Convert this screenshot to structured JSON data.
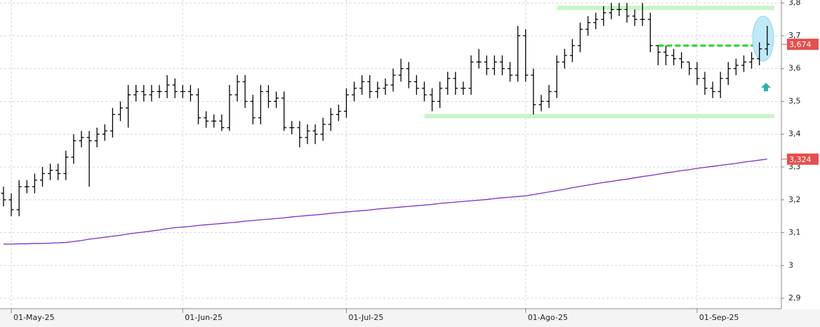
{
  "chart_data": {
    "type": "ohlc",
    "categories": [
      null,
      "01-May-25",
      null,
      null,
      null,
      null,
      null,
      null,
      null,
      null,
      null,
      null,
      null,
      null,
      null,
      null,
      null,
      null,
      null,
      null,
      null,
      null,
      null,
      "01-Jun-25",
      null,
      null,
      null,
      null,
      null,
      null,
      null,
      null,
      null,
      null,
      null,
      null,
      null,
      null,
      null,
      null,
      null,
      null,
      null,
      null,
      "01-Jul-25",
      null,
      null,
      null,
      null,
      null,
      null,
      null,
      null,
      null,
      null,
      null,
      null,
      null,
      null,
      null,
      null,
      null,
      null,
      null,
      null,
      null,
      null,
      "01-Ago-25",
      null,
      null,
      null,
      null,
      null,
      null,
      null,
      null,
      null,
      null,
      null,
      null,
      null,
      null,
      null,
      null,
      null,
      null,
      null,
      null,
      null,
      "01-Sep-25",
      null,
      null,
      null,
      null,
      null,
      null,
      null,
      null,
      null
    ],
    "open": [
      3.22,
      3.2,
      3.17,
      3.24,
      3.24,
      3.26,
      3.28,
      3.29,
      3.28,
      3.33,
      3.38,
      3.39,
      3.38,
      3.4,
      3.41,
      3.46,
      3.48,
      3.52,
      3.53,
      3.52,
      3.53,
      3.53,
      3.55,
      3.53,
      3.53,
      3.52,
      3.45,
      3.44,
      3.44,
      3.42,
      3.52,
      3.56,
      3.5,
      3.45,
      3.53,
      3.5,
      3.51,
      3.42,
      3.42,
      3.39,
      3.41,
      3.4,
      3.43,
      3.46,
      3.47,
      3.52,
      3.54,
      3.56,
      3.53,
      3.54,
      3.55,
      3.58,
      3.6,
      3.56,
      3.54,
      3.52,
      3.5,
      3.54,
      3.57,
      3.54,
      3.54,
      3.62,
      3.62,
      3.6,
      3.62,
      3.6,
      3.58,
      3.7,
      3.58,
      3.49,
      3.5,
      3.53,
      3.62,
      3.64,
      3.67,
      3.72,
      3.74,
      3.75,
      3.77,
      3.78,
      3.78,
      3.76,
      3.75,
      3.75,
      3.67,
      3.65,
      3.64,
      3.63,
      3.62,
      3.6,
      3.57,
      3.54,
      3.53,
      3.57,
      3.6,
      3.61,
      3.62,
      3.63,
      3.66
    ],
    "high": [
      3.24,
      3.22,
      3.26,
      3.26,
      3.28,
      3.3,
      3.31,
      3.31,
      3.35,
      3.4,
      3.41,
      3.41,
      3.42,
      3.43,
      3.48,
      3.5,
      3.55,
      3.55,
      3.55,
      3.55,
      3.55,
      3.58,
      3.57,
      3.55,
      3.55,
      3.54,
      3.47,
      3.46,
      3.46,
      3.55,
      3.58,
      3.58,
      3.52,
      3.55,
      3.55,
      3.53,
      3.53,
      3.44,
      3.44,
      3.43,
      3.43,
      3.45,
      3.48,
      3.49,
      3.54,
      3.56,
      3.58,
      3.58,
      3.56,
      3.57,
      3.6,
      3.63,
      3.62,
      3.58,
      3.56,
      3.54,
      3.56,
      3.59,
      3.59,
      3.56,
      3.64,
      3.66,
      3.64,
      3.64,
      3.64,
      3.62,
      3.73,
      3.72,
      3.6,
      3.52,
      3.55,
      3.64,
      3.66,
      3.69,
      3.74,
      3.76,
      3.77,
      3.79,
      3.8,
      3.8,
      3.8,
      3.78,
      3.8,
      3.77,
      3.67,
      3.67,
      3.66,
      3.65,
      3.62,
      3.62,
      3.59,
      3.56,
      3.59,
      3.62,
      3.63,
      3.64,
      3.65,
      3.68,
      3.73
    ],
    "low": [
      3.18,
      3.15,
      3.15,
      3.22,
      3.22,
      3.24,
      3.26,
      3.26,
      3.26,
      3.31,
      3.36,
      3.24,
      3.36,
      3.38,
      3.39,
      3.44,
      3.42,
      3.5,
      3.5,
      3.5,
      3.51,
      3.51,
      3.51,
      3.51,
      3.5,
      3.43,
      3.42,
      3.42,
      3.41,
      3.41,
      3.5,
      3.48,
      3.43,
      3.43,
      3.48,
      3.48,
      3.41,
      3.4,
      3.36,
      3.37,
      3.37,
      3.38,
      3.41,
      3.44,
      3.45,
      3.5,
      3.52,
      3.51,
      3.51,
      3.52,
      3.53,
      3.56,
      3.54,
      3.52,
      3.5,
      3.47,
      3.48,
      3.52,
      3.52,
      3.52,
      3.52,
      3.6,
      3.58,
      3.58,
      3.58,
      3.56,
      3.56,
      3.56,
      3.46,
      3.47,
      3.48,
      3.51,
      3.6,
      3.62,
      3.65,
      3.7,
      3.72,
      3.73,
      3.75,
      3.76,
      3.74,
      3.73,
      3.73,
      3.65,
      3.61,
      3.61,
      3.61,
      3.6,
      3.58,
      3.55,
      3.52,
      3.51,
      3.51,
      3.55,
      3.58,
      3.59,
      3.6,
      3.61,
      3.64
    ],
    "close": [
      3.2,
      3.17,
      3.24,
      3.24,
      3.26,
      3.28,
      3.29,
      3.28,
      3.33,
      3.38,
      3.39,
      3.38,
      3.4,
      3.41,
      3.46,
      3.48,
      3.52,
      3.53,
      3.52,
      3.53,
      3.53,
      3.55,
      3.53,
      3.53,
      3.52,
      3.45,
      3.44,
      3.44,
      3.42,
      3.52,
      3.56,
      3.5,
      3.45,
      3.53,
      3.5,
      3.51,
      3.42,
      3.42,
      3.39,
      3.41,
      3.4,
      3.43,
      3.46,
      3.47,
      3.52,
      3.54,
      3.56,
      3.53,
      3.54,
      3.55,
      3.58,
      3.6,
      3.56,
      3.54,
      3.52,
      3.5,
      3.54,
      3.57,
      3.54,
      3.54,
      3.62,
      3.62,
      3.6,
      3.62,
      3.6,
      3.58,
      3.7,
      3.58,
      3.49,
      3.5,
      3.53,
      3.62,
      3.64,
      3.67,
      3.72,
      3.74,
      3.75,
      3.77,
      3.78,
      3.78,
      3.76,
      3.75,
      3.75,
      3.67,
      3.65,
      3.64,
      3.63,
      3.62,
      3.6,
      3.57,
      3.54,
      3.53,
      3.57,
      3.6,
      3.61,
      3.62,
      3.63,
      3.66,
      3.674
    ],
    "color": "#000000",
    "ma": {
      "color": "#7b2fc4",
      "values": [
        3.065,
        3.065,
        3.066,
        3.066,
        3.067,
        3.067,
        3.068,
        3.069,
        3.07,
        3.073,
        3.076,
        3.08,
        3.083,
        3.086,
        3.089,
        3.092,
        3.096,
        3.099,
        3.102,
        3.105,
        3.108,
        3.112,
        3.115,
        3.117,
        3.119,
        3.122,
        3.124,
        3.126,
        3.128,
        3.13,
        3.132,
        3.135,
        3.137,
        3.139,
        3.141,
        3.143,
        3.145,
        3.148,
        3.15,
        3.152,
        3.154,
        3.156,
        3.159,
        3.161,
        3.163,
        3.165,
        3.167,
        3.169,
        3.172,
        3.174,
        3.176,
        3.178,
        3.18,
        3.182,
        3.184,
        3.186,
        3.189,
        3.191,
        3.193,
        3.195,
        3.197,
        3.199,
        3.201,
        3.204,
        3.206,
        3.208,
        3.21,
        3.212,
        3.216,
        3.22,
        3.224,
        3.228,
        3.232,
        3.237,
        3.241,
        3.245,
        3.249,
        3.253,
        3.256,
        3.26,
        3.263,
        3.267,
        3.271,
        3.274,
        3.278,
        3.282,
        3.285,
        3.289,
        3.292,
        3.296,
        3.299,
        3.302,
        3.305,
        3.308,
        3.311,
        3.315,
        3.318,
        3.321,
        3.324
      ]
    },
    "levels": [
      {
        "value": 3.785,
        "start": 71,
        "color": "#c8f5c4",
        "style": "solid"
      },
      {
        "value": 3.455,
        "start": 54,
        "color": "#c8f5c4",
        "style": "solid"
      },
      {
        "value": 3.67,
        "start": 84,
        "color": "#22d622",
        "style": "dashed"
      }
    ],
    "last_price": {
      "value": 3.674,
      "label": "3,674",
      "color": "#e5504b"
    },
    "ma_last": {
      "value": 3.324,
      "label": "3,324",
      "color": "#e5504b"
    },
    "ylim": [
      2.868,
      3.809
    ],
    "yticks": [
      {
        "value": 2.9,
        "label": "2,9"
      },
      3,
      {
        "value": 3.1,
        "label": "3,1"
      },
      {
        "value": 3.2,
        "label": "3,2"
      },
      {
        "value": 3.3,
        "label": "3,3"
      },
      {
        "value": 3.4,
        "label": "3,4"
      },
      {
        "value": 3.5,
        "label": "3,5"
      },
      {
        "value": 3.6,
        "label": "3,6"
      },
      {
        "value": 3.7,
        "label": "3,7"
      },
      {
        "value": 3.8,
        "label": "3,8"
      }
    ],
    "grid": true
  }
}
